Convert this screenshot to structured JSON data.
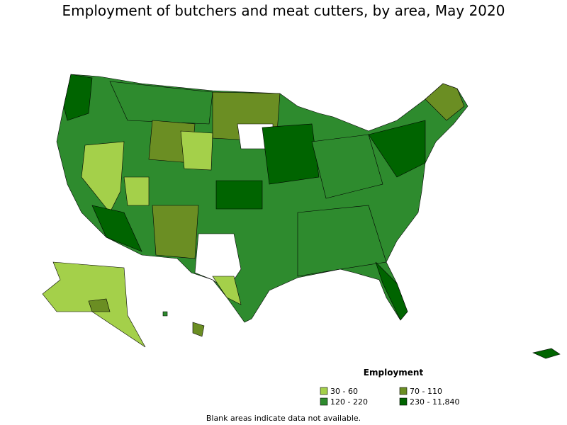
{
  "title": "Employment of butchers and meat cutters, by area, May 2020",
  "legend": {
    "title": "Employment",
    "items": [
      {
        "label": "30 - 60",
        "color": "#a4d04a"
      },
      {
        "label": "70 - 110",
        "color": "#6b8e23"
      },
      {
        "label": "120 - 220",
        "color": "#2e8b2e"
      },
      {
        "label": "230 - 11,840",
        "color": "#006400"
      }
    ]
  },
  "note": "Blank areas indicate data not available."
}
